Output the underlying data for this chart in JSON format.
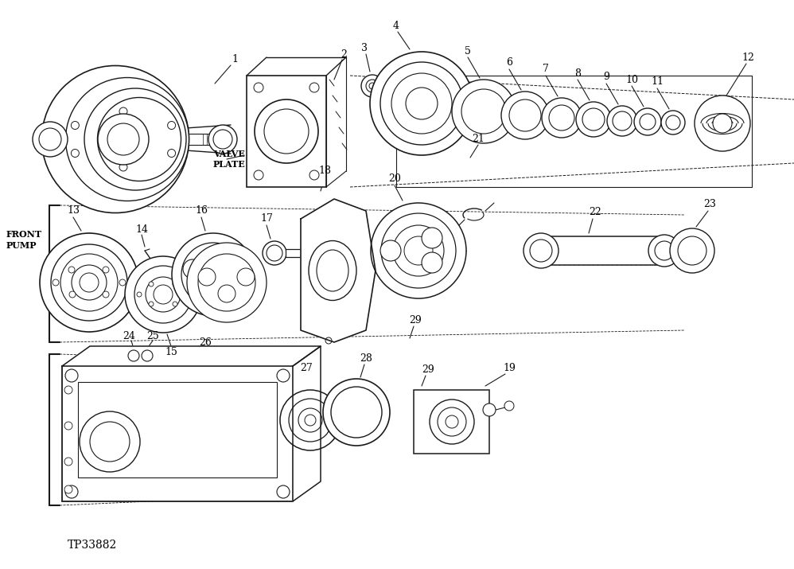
{
  "background_color": "#ffffff",
  "line_color": "#1a1a1a",
  "text_color": "#000000",
  "fig_width": 9.98,
  "fig_height": 7.15,
  "dpi": 100,
  "tp_code": "TP33882",
  "valve_plate_label": "VALVE\nPLATE",
  "front_pump_label": "FRONT\nPUMP"
}
